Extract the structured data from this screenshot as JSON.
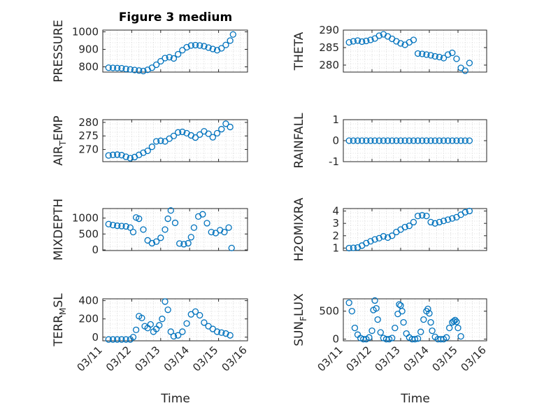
{
  "title": "Figure 3 medium",
  "xlabel": "Time",
  "x_tick_labels": [
    "03/11",
    "03/12",
    "03/13",
    "03/14",
    "03/15",
    "03/16"
  ],
  "chart_data": [
    {
      "type": "scatter",
      "name": "pressure",
      "ylabel": "PRESSURE",
      "ylim": [
        770,
        1010
      ],
      "yticks": [
        800,
        900,
        1000
      ],
      "xlim": [
        0,
        5
      ],
      "x": [
        0.2,
        0.35,
        0.5,
        0.65,
        0.8,
        0.95,
        1.1,
        1.25,
        1.4,
        1.55,
        1.7,
        1.85,
        2.0,
        2.15,
        2.3,
        2.45,
        2.6,
        2.75,
        2.9,
        3.05,
        3.2,
        3.35,
        3.5,
        3.65,
        3.8,
        3.95,
        4.1,
        4.25,
        4.4,
        4.5
      ],
      "y": [
        795,
        794,
        793,
        792,
        788,
        785,
        782,
        779,
        776,
        783,
        795,
        812,
        832,
        850,
        855,
        848,
        872,
        895,
        912,
        922,
        924,
        922,
        918,
        910,
        902,
        895,
        906,
        925,
        950,
        985
      ]
    },
    {
      "type": "scatter",
      "name": "theta",
      "ylabel": "THETA",
      "ylim": [
        278,
        290
      ],
      "yticks": [
        280,
        285,
        290
      ],
      "xlim": [
        0,
        5
      ],
      "x": [
        0.2,
        0.35,
        0.5,
        0.65,
        0.8,
        0.95,
        1.1,
        1.25,
        1.4,
        1.55,
        1.7,
        1.85,
        2.0,
        2.15,
        2.3,
        2.45,
        2.6,
        2.75,
        2.9,
        3.05,
        3.2,
        3.35,
        3.5,
        3.65,
        3.8,
        3.95,
        4.1,
        4.25,
        4.4
      ],
      "y": [
        286.5,
        286.8,
        287.0,
        286.7,
        286.9,
        287.2,
        287.6,
        288.4,
        288.8,
        288.2,
        287.5,
        286.8,
        286.2,
        285.8,
        286.5,
        287.2,
        283.3,
        283.2,
        283.0,
        282.8,
        282.5,
        282.3,
        282.0,
        283.0,
        283.5,
        281.8,
        279.2,
        278.4,
        280.6
      ]
    },
    {
      "type": "scatter",
      "name": "air_temp",
      "ylabel": "AIR_TEMP",
      "ylim": [
        265.5,
        281
      ],
      "yticks": [
        270,
        275,
        280
      ],
      "xlim": [
        0,
        5
      ],
      "x": [
        0.2,
        0.35,
        0.5,
        0.65,
        0.8,
        0.95,
        1.1,
        1.25,
        1.4,
        1.55,
        1.7,
        1.85,
        2.0,
        2.15,
        2.3,
        2.45,
        2.6,
        2.75,
        2.9,
        3.05,
        3.2,
        3.35,
        3.5,
        3.65,
        3.8,
        3.95,
        4.1,
        4.25,
        4.4
      ],
      "y": [
        267.8,
        268.0,
        268.1,
        267.9,
        267.3,
        266.8,
        267.2,
        268.0,
        268.8,
        269.5,
        271.0,
        273.0,
        273.2,
        273.0,
        274.0,
        275.0,
        276.3,
        276.5,
        276.0,
        275.2,
        274.4,
        275.5,
        276.7,
        275.8,
        274.5,
        276.0,
        277.5,
        279.5,
        278.3
      ]
    },
    {
      "type": "scatter",
      "name": "rainfall",
      "ylabel": "RAINFALL",
      "ylim": [
        -1,
        1
      ],
      "yticks": [
        -1,
        0,
        1
      ],
      "xlim": [
        0,
        5
      ],
      "x": [
        0.2,
        0.35,
        0.5,
        0.65,
        0.8,
        0.95,
        1.1,
        1.25,
        1.4,
        1.55,
        1.7,
        1.85,
        2.0,
        2.15,
        2.3,
        2.45,
        2.6,
        2.75,
        2.9,
        3.05,
        3.2,
        3.35,
        3.5,
        3.65,
        3.8,
        3.95,
        4.1,
        4.25,
        4.4
      ],
      "y": [
        0,
        0,
        0,
        0,
        0,
        0,
        0,
        0,
        0,
        0,
        0,
        0,
        0,
        0,
        0,
        0,
        0,
        0,
        0,
        0,
        0,
        0,
        0,
        0,
        0,
        0,
        0,
        0,
        0
      ]
    },
    {
      "type": "scatter",
      "name": "mixdepth",
      "ylabel": "MIXDEPTH",
      "ylim": [
        -20,
        1300
      ],
      "yticks": [
        0,
        500,
        1000
      ],
      "xlim": [
        0,
        5
      ],
      "x": [
        0.2,
        0.35,
        0.5,
        0.65,
        0.8,
        0.95,
        1.05,
        1.15,
        1.25,
        1.4,
        1.55,
        1.7,
        1.85,
        2.0,
        2.15,
        2.25,
        2.35,
        2.5,
        2.65,
        2.8,
        2.95,
        3.05,
        3.15,
        3.3,
        3.45,
        3.6,
        3.75,
        3.9,
        4.05,
        4.2,
        4.35,
        4.45
      ],
      "y": [
        810,
        780,
        760,
        750,
        740,
        700,
        560,
        1020,
        980,
        640,
        300,
        210,
        260,
        380,
        640,
        980,
        1240,
        850,
        200,
        180,
        210,
        400,
        700,
        1050,
        1120,
        840,
        560,
        530,
        620,
        560,
        700,
        60
      ]
    },
    {
      "type": "scatter",
      "name": "h2omixra",
      "ylabel": "H2OMIXRA",
      "ylim": [
        0.8,
        4.2
      ],
      "yticks": [
        1,
        2,
        3,
        4
      ],
      "xlim": [
        0,
        5
      ],
      "x": [
        0.2,
        0.35,
        0.5,
        0.65,
        0.8,
        0.95,
        1.1,
        1.25,
        1.4,
        1.55,
        1.7,
        1.85,
        2.0,
        2.15,
        2.3,
        2.45,
        2.6,
        2.75,
        2.9,
        3.05,
        3.2,
        3.35,
        3.5,
        3.65,
        3.8,
        3.95,
        4.1,
        4.25,
        4.4
      ],
      "y": [
        1.0,
        1.02,
        1.05,
        1.2,
        1.4,
        1.55,
        1.7,
        1.8,
        1.95,
        1.85,
        2.0,
        2.3,
        2.5,
        2.7,
        2.8,
        3.1,
        3.6,
        3.65,
        3.6,
        3.1,
        3.0,
        3.1,
        3.2,
        3.3,
        3.4,
        3.5,
        3.7,
        3.9,
        4.0
      ]
    },
    {
      "type": "scatter",
      "name": "terr_msl",
      "ylabel": "TERR_MSL",
      "ylim": [
        -40,
        420
      ],
      "yticks": [
        0,
        200,
        400
      ],
      "xlim": [
        0,
        5
      ],
      "x": [
        0.2,
        0.35,
        0.5,
        0.65,
        0.8,
        0.95,
        1.05,
        1.15,
        1.25,
        1.35,
        1.45,
        1.55,
        1.65,
        1.75,
        1.85,
        1.95,
        2.05,
        2.15,
        2.25,
        2.35,
        2.45,
        2.6,
        2.75,
        2.9,
        3.05,
        3.2,
        3.35,
        3.5,
        3.65,
        3.8,
        3.95,
        4.1,
        4.25,
        4.4
      ],
      "y": [
        -25,
        -25,
        -25,
        -25,
        -25,
        -25,
        0,
        80,
        230,
        210,
        120,
        100,
        140,
        60,
        90,
        130,
        200,
        390,
        300,
        60,
        10,
        20,
        60,
        150,
        250,
        280,
        240,
        160,
        120,
        90,
        60,
        50,
        40,
        20
      ]
    },
    {
      "type": "scatter",
      "name": "sun_flux",
      "ylabel": "SUN_FLUX",
      "ylim": [
        -30,
        720
      ],
      "yticks": [
        0,
        500
      ],
      "xlim": [
        0,
        5
      ],
      "x": [
        0.2,
        0.3,
        0.4,
        0.5,
        0.6,
        0.7,
        0.8,
        0.9,
        1.0,
        1.05,
        1.1,
        1.15,
        1.2,
        1.3,
        1.4,
        1.5,
        1.6,
        1.7,
        1.8,
        1.9,
        1.95,
        2.0,
        2.05,
        2.1,
        2.2,
        2.3,
        2.4,
        2.5,
        2.6,
        2.7,
        2.8,
        2.9,
        2.95,
        3.0,
        3.05,
        3.1,
        3.2,
        3.3,
        3.4,
        3.5,
        3.6,
        3.7,
        3.8,
        3.85,
        3.9,
        3.95,
        4.0,
        4.1
      ],
      "y": [
        650,
        500,
        200,
        80,
        20,
        0,
        0,
        30,
        150,
        520,
        690,
        550,
        350,
        120,
        20,
        0,
        0,
        20,
        200,
        450,
        620,
        600,
        500,
        300,
        100,
        30,
        0,
        0,
        10,
        130,
        350,
        500,
        540,
        460,
        300,
        150,
        40,
        0,
        0,
        0,
        30,
        200,
        300,
        320,
        340,
        310,
        200,
        50
      ]
    }
  ]
}
